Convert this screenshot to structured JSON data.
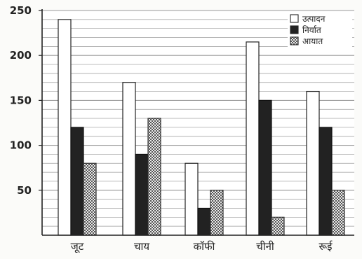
{
  "chart_data": {
    "type": "bar",
    "categories": [
      "जूट",
      "चाय",
      "कॉफी",
      "चीनी",
      "रूई"
    ],
    "series": [
      {
        "name": "उत्पादन",
        "values": [
          240,
          170,
          80,
          215,
          160
        ]
      },
      {
        "name": "निर्यात",
        "values": [
          120,
          90,
          30,
          150,
          120
        ]
      },
      {
        "name": "आयात",
        "values": [
          80,
          130,
          50,
          20,
          50
        ]
      }
    ],
    "y_ticks": [
      "50",
      "100",
      "150",
      "200",
      "250"
    ],
    "ylim": [
      0,
      250
    ],
    "grid": "horizontal",
    "legend_position": "top-right",
    "colors": {
      "उत्पादन": "#ffffff",
      "निर्यात": "#222222",
      "आयात": "#d9d9d9"
    }
  }
}
